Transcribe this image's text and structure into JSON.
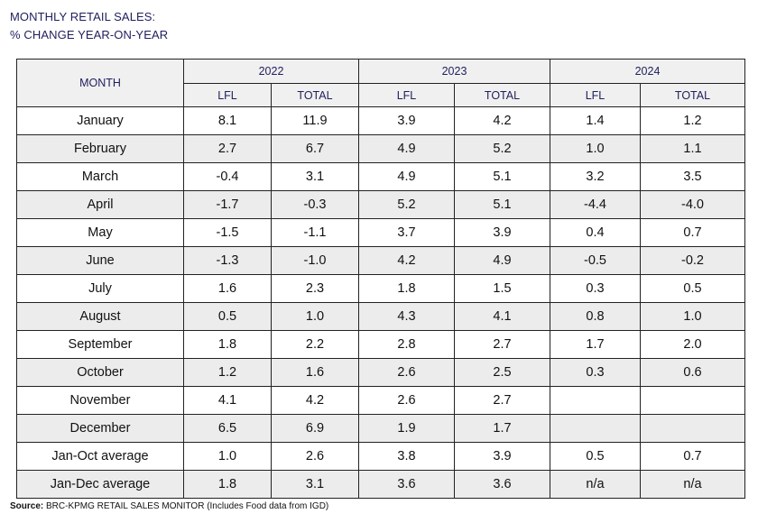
{
  "title": {
    "line1": "MONTHLY RETAIL SALES:",
    "line2": "% CHANGE YEAR-ON-YEAR"
  },
  "table": {
    "month_header": "MONTH",
    "years": [
      "2022",
      "2023",
      "2024"
    ],
    "sub_headers": [
      "LFL",
      "TOTAL",
      "LFL",
      "TOTAL",
      "LFL",
      "TOTAL"
    ],
    "rows": [
      {
        "month": "January",
        "values": [
          "8.1",
          "11.9",
          "3.9",
          "4.2",
          "1.4",
          "1.2"
        ]
      },
      {
        "month": "February",
        "values": [
          "2.7",
          "6.7",
          "4.9",
          "5.2",
          "1.0",
          "1.1"
        ]
      },
      {
        "month": "March",
        "values": [
          "-0.4",
          "3.1",
          "4.9",
          "5.1",
          "3.2",
          "3.5"
        ]
      },
      {
        "month": "April",
        "values": [
          "-1.7",
          "-0.3",
          "5.2",
          "5.1",
          "-4.4",
          "-4.0"
        ]
      },
      {
        "month": "May",
        "values": [
          "-1.5",
          "-1.1",
          "3.7",
          "3.9",
          "0.4",
          "0.7"
        ]
      },
      {
        "month": "June",
        "values": [
          "-1.3",
          "-1.0",
          "4.2",
          "4.9",
          "-0.5",
          "-0.2"
        ]
      },
      {
        "month": "July",
        "values": [
          "1.6",
          "2.3",
          "1.8",
          "1.5",
          "0.3",
          "0.5"
        ]
      },
      {
        "month": "August",
        "values": [
          "0.5",
          "1.0",
          "4.3",
          "4.1",
          "0.8",
          "1.0"
        ]
      },
      {
        "month": "September",
        "values": [
          "1.8",
          "2.2",
          "2.8",
          "2.7",
          "1.7",
          "2.0"
        ]
      },
      {
        "month": "October",
        "values": [
          "1.2",
          "1.6",
          "2.6",
          "2.5",
          "0.3",
          "0.6"
        ]
      },
      {
        "month": "November",
        "values": [
          "4.1",
          "4.2",
          "2.6",
          "2.7",
          "",
          ""
        ]
      },
      {
        "month": "December",
        "values": [
          "6.5",
          "6.9",
          "1.9",
          "1.7",
          "",
          ""
        ]
      },
      {
        "month": "Jan-Oct average",
        "values": [
          "1.0",
          "2.6",
          "3.8",
          "3.9",
          "0.5",
          "0.7"
        ]
      },
      {
        "month": "Jan-Dec average",
        "values": [
          "1.8",
          "3.1",
          "3.6",
          "3.6",
          "n/a",
          "n/a"
        ]
      }
    ]
  },
  "source": {
    "label": "Source:",
    "text": "BRC-KPMG RETAIL SALES MONITOR (Includes Food data from IGD)"
  }
}
